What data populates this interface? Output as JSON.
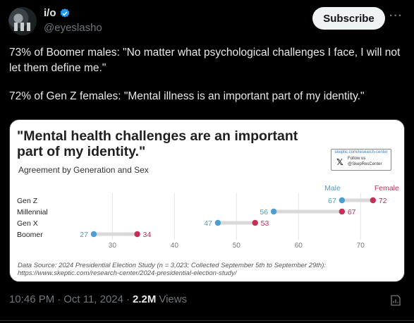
{
  "author": {
    "display_name": "i/o",
    "handle": "@eyeslasho"
  },
  "subscribe_label": "Subscribe",
  "more_label": "···",
  "tweet": {
    "line1": "73% of Boomer males: \"No matter what psychological challenges I face, I will not let them define me.\"",
    "line2": "72% of Gen Z females: \"Mental illness is an important part of my identity.\""
  },
  "card": {
    "logo": {
      "url": "skeptic.com/research-center",
      "follow": "Follow us",
      "handle": "@SkepResCenter"
    },
    "source": "Data Source: 2024 Presidential Election Study (n = 3,023; Collected September 5th to September 29th): https://www.skeptic.com/research-center/2024-presidential-election-study/"
  },
  "chart_data": {
    "type": "dumbbell",
    "title": "\"Mental health challenges are an important part of my identity.\"",
    "subtitle": "Agreement by Generation and Sex",
    "categories": [
      "Gen Z",
      "Millennial",
      "Gen X",
      "Boomer"
    ],
    "series": [
      {
        "name": "Male",
        "color": "#4a9fd0",
        "values": [
          67,
          56,
          47,
          27
        ]
      },
      {
        "name": "Female",
        "color": "#c4305a",
        "values": [
          72,
          67,
          53,
          34
        ]
      }
    ],
    "x_ticks": [
      30,
      40,
      50,
      60,
      70
    ],
    "xlim": [
      22,
      76
    ],
    "grid": true,
    "legend": "top-right, next to Gen Z points"
  },
  "footer": {
    "time": "10:46 PM",
    "date": "Oct 11, 2024",
    "separator": "·",
    "views_count": "2.2M",
    "views_label": "Views"
  }
}
